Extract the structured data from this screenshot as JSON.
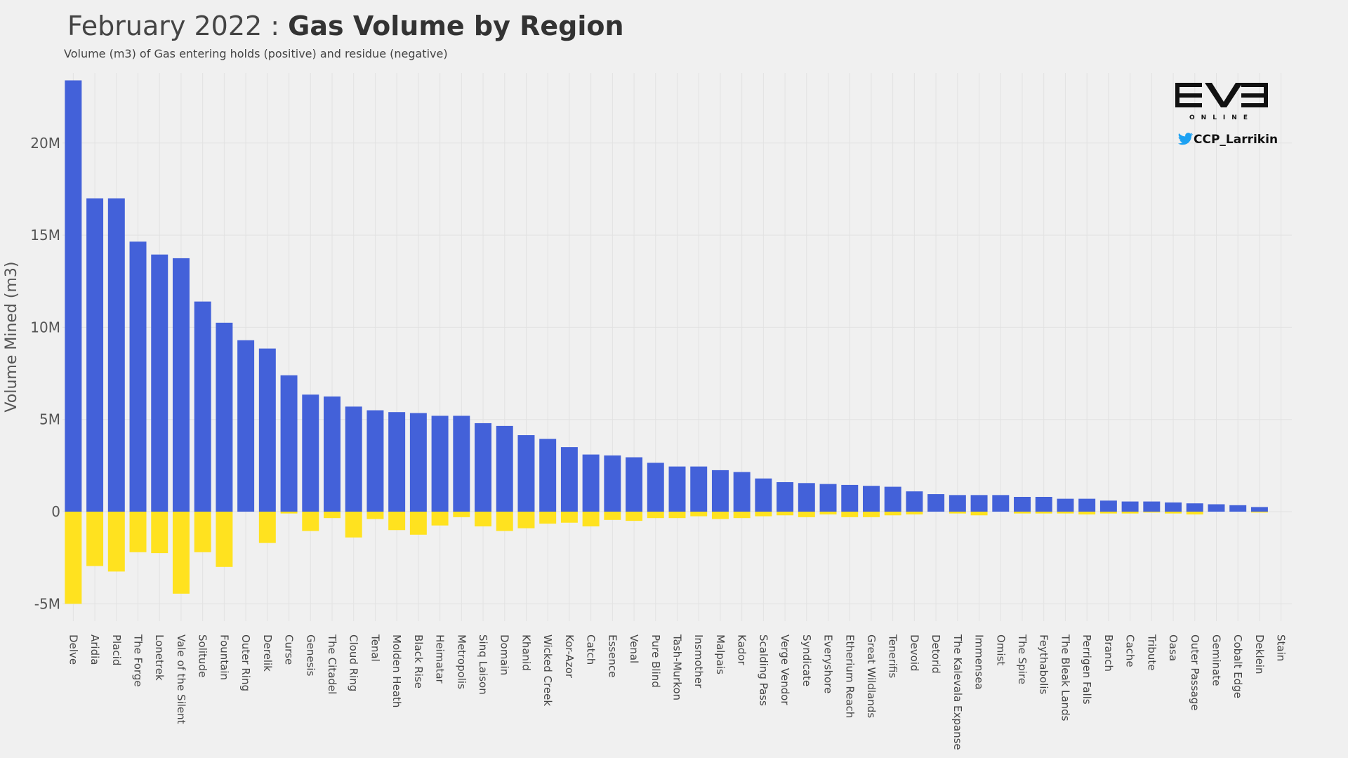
{
  "header": {
    "title_light": "February 2022 : ",
    "title_bold": "Gas Volume by Region",
    "subtitle": "Volume (m3) of Gas entering holds (positive) and residue (negative)"
  },
  "logo": {
    "brand": "EVE",
    "tagline": "ONLINE",
    "handle": "CCP_Larrikin",
    "twitter_color": "#1da1f2"
  },
  "colors": {
    "positive": "#4361d9",
    "negative": "#ffe21f",
    "grid": "#e2e2e2"
  },
  "chart_data": {
    "type": "bar",
    "title": "February 2022 : Gas Volume by Region",
    "ylabel": "Volume Mined (m3)",
    "xlabel": "",
    "ylim": [
      -5600000,
      23800000
    ],
    "yticks": [
      -5000000,
      0,
      5000000,
      10000000,
      15000000,
      20000000
    ],
    "ytick_labels": [
      "-5M",
      "0",
      "5M",
      "10M",
      "15M",
      "20M"
    ],
    "grid": true,
    "categories": [
      "Delve",
      "Aridia",
      "Placid",
      "The Forge",
      "Lonetrek",
      "Vale of the Silent",
      "Solitude",
      "Fountain",
      "Outer Ring",
      "Derelik",
      "Curse",
      "Genesis",
      "The Citadel",
      "Cloud Ring",
      "Tenal",
      "Molden Heath",
      "Black Rise",
      "Heimatar",
      "Metropolis",
      "Sinq Laison",
      "Domain",
      "Khanid",
      "Wicked Creek",
      "Kor-Azor",
      "Catch",
      "Essence",
      "Venal",
      "Pure Blind",
      "Tash-Murkon",
      "Insmother",
      "Malpais",
      "Kador",
      "Scalding Pass",
      "Verge Vendor",
      "Syndicate",
      "Everyshore",
      "Etherium Reach",
      "Great Wildlands",
      "Tenerifis",
      "Devoid",
      "Detorid",
      "The Kalevala Expanse",
      "Immensea",
      "Omist",
      "The Spire",
      "Feythabolis",
      "The Bleak Lands",
      "Perrigen Falls",
      "Branch",
      "Cache",
      "Tribute",
      "Oasa",
      "Outer Passage",
      "Geminate",
      "Cobalt Edge",
      "Deklein",
      "Stain"
    ],
    "series": [
      {
        "name": "positive",
        "values": [
          23400000,
          17000000,
          17000000,
          14650000,
          13950000,
          13750000,
          11400000,
          10250000,
          9300000,
          8850000,
          7400000,
          6350000,
          6250000,
          5700000,
          5500000,
          5400000,
          5350000,
          5200000,
          5200000,
          4800000,
          4650000,
          4150000,
          3950000,
          3500000,
          3100000,
          3050000,
          2950000,
          2650000,
          2450000,
          2450000,
          2250000,
          2150000,
          1800000,
          1600000,
          1550000,
          1500000,
          1450000,
          1400000,
          1350000,
          1100000,
          950000,
          900000,
          900000,
          900000,
          800000,
          800000,
          700000,
          700000,
          600000,
          550000,
          550000,
          500000,
          450000,
          400000,
          350000,
          250000,
          0
        ]
      },
      {
        "name": "negative",
        "values": [
          -5000000,
          -2950000,
          -3250000,
          -2200000,
          -2250000,
          -4450000,
          -2200000,
          -3000000,
          0,
          -1700000,
          -100000,
          -1050000,
          -350000,
          -1400000,
          -400000,
          -1000000,
          -1250000,
          -750000,
          -300000,
          -800000,
          -1050000,
          -900000,
          -650000,
          -600000,
          -800000,
          -450000,
          -500000,
          -350000,
          -350000,
          -250000,
          -400000,
          -350000,
          -250000,
          -200000,
          -300000,
          -150000,
          -300000,
          -300000,
          -200000,
          -150000,
          0,
          -100000,
          -200000,
          0,
          -100000,
          -100000,
          -100000,
          -150000,
          -100000,
          -100000,
          -50000,
          -100000,
          -150000,
          0,
          0,
          -50000,
          0
        ]
      }
    ]
  }
}
